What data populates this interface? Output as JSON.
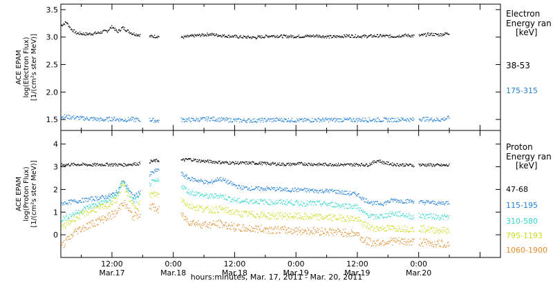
{
  "xlabel": "hours:minutes, Mar. 17, 2011 - Mar. 20, 2011",
  "x_ticks": [
    {
      "time": "12:00",
      "date": "Mar.17",
      "hour": 12
    },
    {
      "time": "0:00",
      "date": "Mar.18",
      "hour": 24
    },
    {
      "time": "12:00",
      "date": "Mar.18",
      "hour": 36
    },
    {
      "time": "0:00",
      "date": "Mar.19",
      "hour": 48
    },
    {
      "time": "12:00",
      "date": "Mar.19",
      "hour": 60
    },
    {
      "time": "0:00",
      "date": "Mar.20",
      "hour": 72
    }
  ],
  "colors": {
    "black": "#000000",
    "blue": "#1f7fd6",
    "cyan": "#35d8cc",
    "yellow": "#c8dc1e",
    "orange": "#e08a2a"
  },
  "chart_data": [
    {
      "type": "scatter",
      "panel": "electron",
      "ylabel_lines": [
        "ACE EPAM",
        "log(Electron Flux)",
        "[1/(cm²s ster MeV)]"
      ],
      "ylim": [
        1.3,
        3.6
      ],
      "xlim": [
        2,
        88
      ],
      "yticks": [
        1.5,
        2.0,
        2.5,
        3.0,
        3.5
      ],
      "ytick_labels": [
        "1.5",
        "2.0",
        "2.5",
        "3.0",
        "3.5"
      ],
      "legend_title_lines": [
        "Electron",
        "Energy ran",
        "[keV]"
      ],
      "data_gaps": [
        [
          17.5,
          19.2
        ],
        [
          21.2,
          25.5
        ],
        [
          71,
          72
        ]
      ],
      "series": [
        {
          "name": "38-53",
          "color_key": "black",
          "x": [
            2,
            3,
            4,
            5,
            7,
            9,
            11,
            12,
            13,
            14,
            15,
            16,
            17,
            19.5,
            21,
            25.5,
            28,
            31,
            34,
            37,
            40,
            43,
            46,
            49,
            52,
            55,
            58,
            61,
            64,
            67,
            69,
            71,
            72,
            74,
            76,
            78
          ],
          "values": [
            3.22,
            3.28,
            3.15,
            3.08,
            3.06,
            3.08,
            3.12,
            3.2,
            3.1,
            3.18,
            3.12,
            3.07,
            3.05,
            3.02,
            3.02,
            3.0,
            3.03,
            3.06,
            3.03,
            3.01,
            3.0,
            3.03,
            3.02,
            3.02,
            3.03,
            3.01,
            3.03,
            3.02,
            3.03,
            3.02,
            3.04,
            3.03,
            3.03,
            3.06,
            3.05,
            3.08
          ]
        },
        {
          "name": "175-315",
          "color_key": "blue",
          "x": [
            2,
            4,
            6,
            8,
            10,
            12,
            14,
            16,
            17,
            19.5,
            21,
            25.5,
            28,
            31,
            34,
            37,
            40,
            43,
            46,
            49,
            52,
            55,
            58,
            61,
            64,
            67,
            69,
            71,
            72,
            74,
            76,
            78
          ],
          "values": [
            1.56,
            1.55,
            1.53,
            1.52,
            1.5,
            1.52,
            1.5,
            1.51,
            1.5,
            1.5,
            1.48,
            1.5,
            1.5,
            1.52,
            1.5,
            1.49,
            1.49,
            1.5,
            1.5,
            1.49,
            1.5,
            1.5,
            1.5,
            1.5,
            1.5,
            1.5,
            1.51,
            1.5,
            1.52,
            1.51,
            1.5,
            1.54
          ]
        }
      ]
    },
    {
      "type": "scatter",
      "panel": "proton",
      "ylabel_lines": [
        "ACE EPAM",
        "log(Proton Flux)",
        "[1/(cm²s ster MeV)]"
      ],
      "ylim": [
        -1.0,
        4.6
      ],
      "xlim": [
        2,
        88
      ],
      "yticks": [
        0,
        1,
        2,
        3,
        4
      ],
      "ytick_labels": [
        "0",
        "1",
        "2",
        "3",
        "4"
      ],
      "legend_title_lines": [
        "Proton",
        "Energy ran",
        "[keV]"
      ],
      "data_gaps": [
        [
          17.5,
          19.2
        ],
        [
          21.2,
          25.5
        ],
        [
          71,
          72
        ]
      ],
      "series": [
        {
          "name": "47-68",
          "color_key": "black",
          "x": [
            2,
            5,
            8,
            11,
            14,
            17,
            19.5,
            21,
            25.5,
            27,
            29,
            31,
            34,
            37,
            40,
            43,
            46,
            49,
            52,
            55,
            58,
            60,
            62,
            64,
            65,
            67,
            69,
            71,
            72,
            74,
            76,
            78
          ],
          "values": [
            3.1,
            3.12,
            3.1,
            3.12,
            3.1,
            3.15,
            3.25,
            3.3,
            3.3,
            3.35,
            3.28,
            3.25,
            3.2,
            3.18,
            3.18,
            3.15,
            3.12,
            3.15,
            3.12,
            3.12,
            3.1,
            3.12,
            3.1,
            3.3,
            3.2,
            3.12,
            3.1,
            3.08,
            3.1,
            3.1,
            3.08,
            3.08
          ]
        },
        {
          "name": "115-195",
          "color_key": "blue",
          "x": [
            2,
            5,
            8,
            11,
            13,
            14,
            15,
            16,
            17,
            19.5,
            21,
            25.5,
            27,
            29,
            31,
            33,
            35,
            37,
            40,
            43,
            46,
            49,
            52,
            55,
            58,
            60,
            61,
            63,
            65,
            67,
            69,
            71,
            72,
            74,
            76,
            78
          ],
          "values": [
            1.4,
            1.5,
            1.6,
            1.7,
            1.9,
            2.4,
            2.1,
            1.7,
            1.8,
            2.7,
            2.9,
            2.7,
            2.5,
            2.4,
            2.3,
            2.5,
            2.3,
            2.1,
            2.05,
            2.05,
            2.0,
            2.0,
            1.95,
            1.95,
            1.85,
            1.8,
            1.6,
            1.4,
            1.4,
            1.55,
            1.5,
            1.5,
            1.45,
            1.45,
            1.4,
            1.45
          ]
        },
        {
          "name": "310-580",
          "color_key": "cyan",
          "x": [
            2,
            5,
            8,
            11,
            13,
            14,
            15,
            16,
            17,
            19.5,
            21,
            25.5,
            27,
            29,
            31,
            33,
            35,
            37,
            40,
            43,
            46,
            49,
            52,
            55,
            58,
            60,
            61,
            63,
            65,
            67,
            69,
            71,
            72,
            74,
            76,
            78
          ],
          "values": [
            0.7,
            1.0,
            1.3,
            1.5,
            1.8,
            2.4,
            2.0,
            1.5,
            1.6,
            2.3,
            2.4,
            2.2,
            1.9,
            1.8,
            1.7,
            1.75,
            1.6,
            1.5,
            1.5,
            1.45,
            1.45,
            1.4,
            1.4,
            1.35,
            1.3,
            1.25,
            1.0,
            0.8,
            0.85,
            0.95,
            0.9,
            0.8,
            0.85,
            0.85,
            0.8,
            0.8
          ]
        },
        {
          "name": "795-1193",
          "color_key": "yellow",
          "x": [
            2,
            5,
            8,
            11,
            13,
            14,
            15,
            16,
            17,
            19.5,
            21,
            25.5,
            27,
            29,
            31,
            33,
            35,
            37,
            40,
            43,
            46,
            49,
            52,
            55,
            58,
            60,
            61,
            63,
            65,
            67,
            69,
            71,
            72,
            74,
            76,
            78
          ],
          "values": [
            0.3,
            0.8,
            1.1,
            1.3,
            1.6,
            2.3,
            1.8,
            1.3,
            1.3,
            1.8,
            1.8,
            1.6,
            1.3,
            1.2,
            1.1,
            1.15,
            1.05,
            0.95,
            0.9,
            0.85,
            0.85,
            0.82,
            0.8,
            0.78,
            0.75,
            0.7,
            0.5,
            0.3,
            0.3,
            0.3,
            0.3,
            0.25,
            0.3,
            0.25,
            0.22,
            0.2
          ]
        },
        {
          "name": "1060-1900",
          "color_key": "orange",
          "x": [
            2,
            5,
            8,
            11,
            13,
            14,
            15,
            16,
            17,
            19.5,
            21,
            25.5,
            27,
            29,
            31,
            33,
            35,
            37,
            40,
            43,
            46,
            49,
            52,
            55,
            58,
            60,
            61,
            63,
            65,
            67,
            69,
            71,
            72,
            74,
            76,
            78
          ],
          "values": [
            -0.5,
            0.2,
            0.5,
            0.8,
            1.0,
            1.5,
            1.2,
            0.8,
            0.9,
            1.3,
            1.1,
            0.9,
            0.6,
            0.5,
            0.45,
            0.5,
            0.4,
            0.3,
            0.28,
            0.25,
            0.22,
            0.2,
            0.18,
            0.15,
            0.1,
            0.05,
            -0.2,
            -0.35,
            -0.3,
            -0.25,
            -0.3,
            -0.3,
            -0.3,
            -0.35,
            -0.38,
            -0.4
          ]
        }
      ]
    }
  ]
}
